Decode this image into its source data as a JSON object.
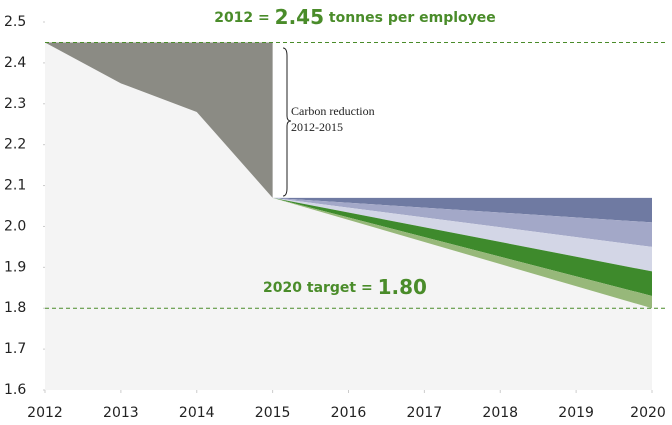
{
  "chart_data": {
    "type": "area",
    "xlim": [
      2012,
      2020
    ],
    "xticks": [
      2012,
      2013,
      2014,
      2015,
      2016,
      2017,
      2018,
      2019,
      2020
    ],
    "ylim": [
      1.6,
      2.5
    ],
    "yticks": [
      1.6,
      1.7,
      1.8,
      1.9,
      {
        "value": 2,
        "label": "2.0"
      },
      2.1,
      2.2,
      2.3,
      2.4,
      2.5
    ],
    "series": [
      {
        "color": "#8b8b84",
        "x": [
          2012,
          2013,
          2014,
          2015
        ],
        "values": [
          2.45,
          2.35,
          2.28,
          2.07
        ]
      },
      {
        "color": "#6f7aa2",
        "x": [
          2015,
          2020
        ],
        "values": [
          2.07,
          2.07
        ],
        "lower": [
          2.07,
          2.01
        ]
      },
      {
        "color": "#a3a8c8",
        "x": [
          2015,
          2020
        ],
        "values": [
          2.07,
          2.01
        ],
        "lower": [
          2.07,
          1.95
        ]
      },
      {
        "color": "#d3d6e6",
        "x": [
          2015,
          2020
        ],
        "values": [
          2.07,
          1.95
        ],
        "lower": [
          2.07,
          1.89
        ]
      },
      {
        "color": "#3e8a2c",
        "x": [
          2015,
          2020
        ],
        "values": [
          2.07,
          1.89
        ],
        "lower": [
          2.07,
          1.83
        ]
      },
      {
        "color": "#97b87a",
        "x": [
          2015,
          2020
        ],
        "values": [
          2.07,
          1.83
        ],
        "lower": [
          2.07,
          1.8
        ]
      }
    ],
    "baseline_color": "#f4f4f4",
    "text_color": "#4a8c2a",
    "top_line": {
      "prefix": "2012 =",
      "value": 2.45,
      "suffix": "tonnes per employee"
    },
    "target_line": {
      "prefix": "2020 target =",
      "value": 1.8,
      "value_label": "1.80"
    },
    "annotation": [
      "Carbon reduction",
      "2012-2015"
    ]
  }
}
